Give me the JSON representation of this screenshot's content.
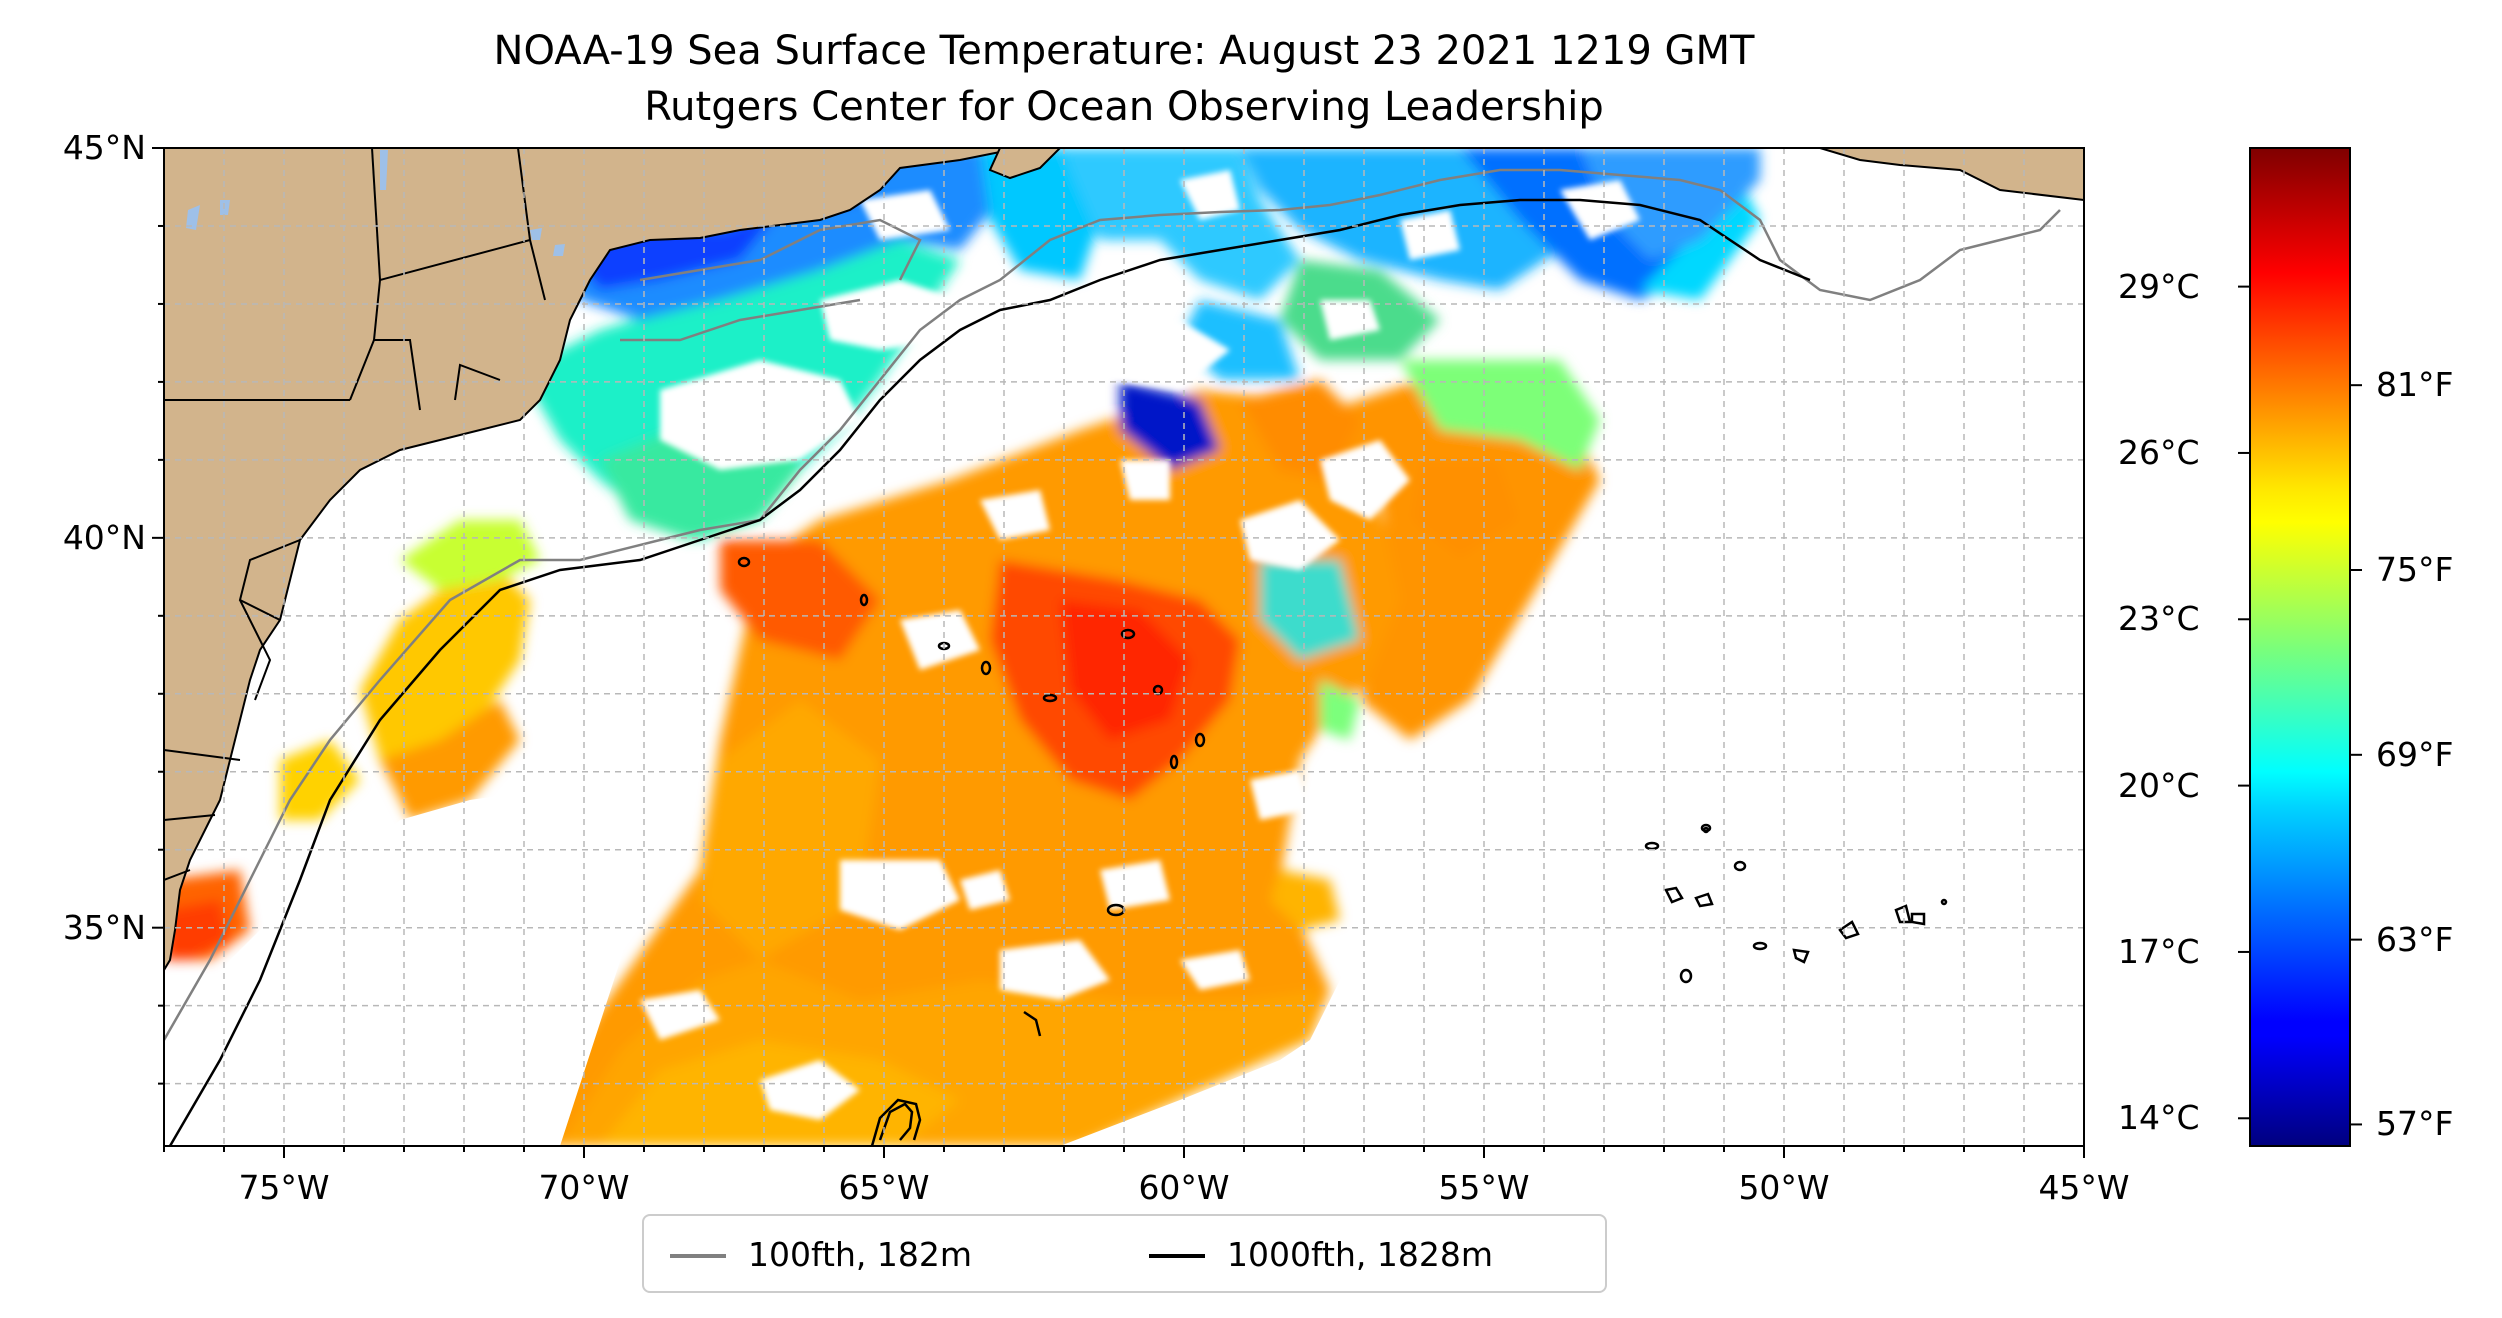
{
  "title": "NOAA-19 Sea Surface Temperature: August 23 2021 1219 GMT",
  "subtitle": "Rutgers Center for Ocean Observing Leadership",
  "map": {
    "extent": {
      "lon": [
        -77,
        -45
      ],
      "lat": [
        32.2,
        45
      ]
    },
    "lat_ticks": [
      {
        "value": 45,
        "label": "45°N"
      },
      {
        "value": 40,
        "label": "40°N"
      },
      {
        "value": 35,
        "label": "35°N"
      }
    ],
    "lon_ticks": [
      {
        "value": -75,
        "label": "75°W"
      },
      {
        "value": -70,
        "label": "70°W"
      },
      {
        "value": -65,
        "label": "65°W"
      },
      {
        "value": -60,
        "label": "60°W"
      },
      {
        "value": -55,
        "label": "55°W"
      },
      {
        "value": -50,
        "label": "50°W"
      },
      {
        "value": -45,
        "label": "45°W"
      }
    ],
    "gridlines": "dashed, 1° spacing",
    "colors": {
      "land": "#d2b48c",
      "lakes": "#9ec0e8",
      "no_data": "#ffffff",
      "grid": "#b8b8b8"
    }
  },
  "colorbar": {
    "colormap": "jet",
    "range_c": [
      13.5,
      31.5
    ],
    "celsius_ticks": [
      {
        "value": 29,
        "label": "29°C"
      },
      {
        "value": 26,
        "label": "26°C"
      },
      {
        "value": 23,
        "label": "23°C"
      },
      {
        "value": 20,
        "label": "20°C"
      },
      {
        "value": 17,
        "label": "17°C"
      },
      {
        "value": 14,
        "label": "14°C"
      }
    ],
    "fahrenheit_ticks": [
      {
        "value": 81,
        "label": "81°F"
      },
      {
        "value": 75,
        "label": "75°F"
      },
      {
        "value": 69,
        "label": "69°F"
      },
      {
        "value": 63,
        "label": "63°F"
      },
      {
        "value": 57,
        "label": "57°F"
      }
    ]
  },
  "legend": {
    "location": "below the map, centered",
    "entries": [
      {
        "label": "100fth, 182m",
        "color": "#808080"
      },
      {
        "label": "1000fth, 1828m",
        "color": "#000000"
      }
    ]
  }
}
